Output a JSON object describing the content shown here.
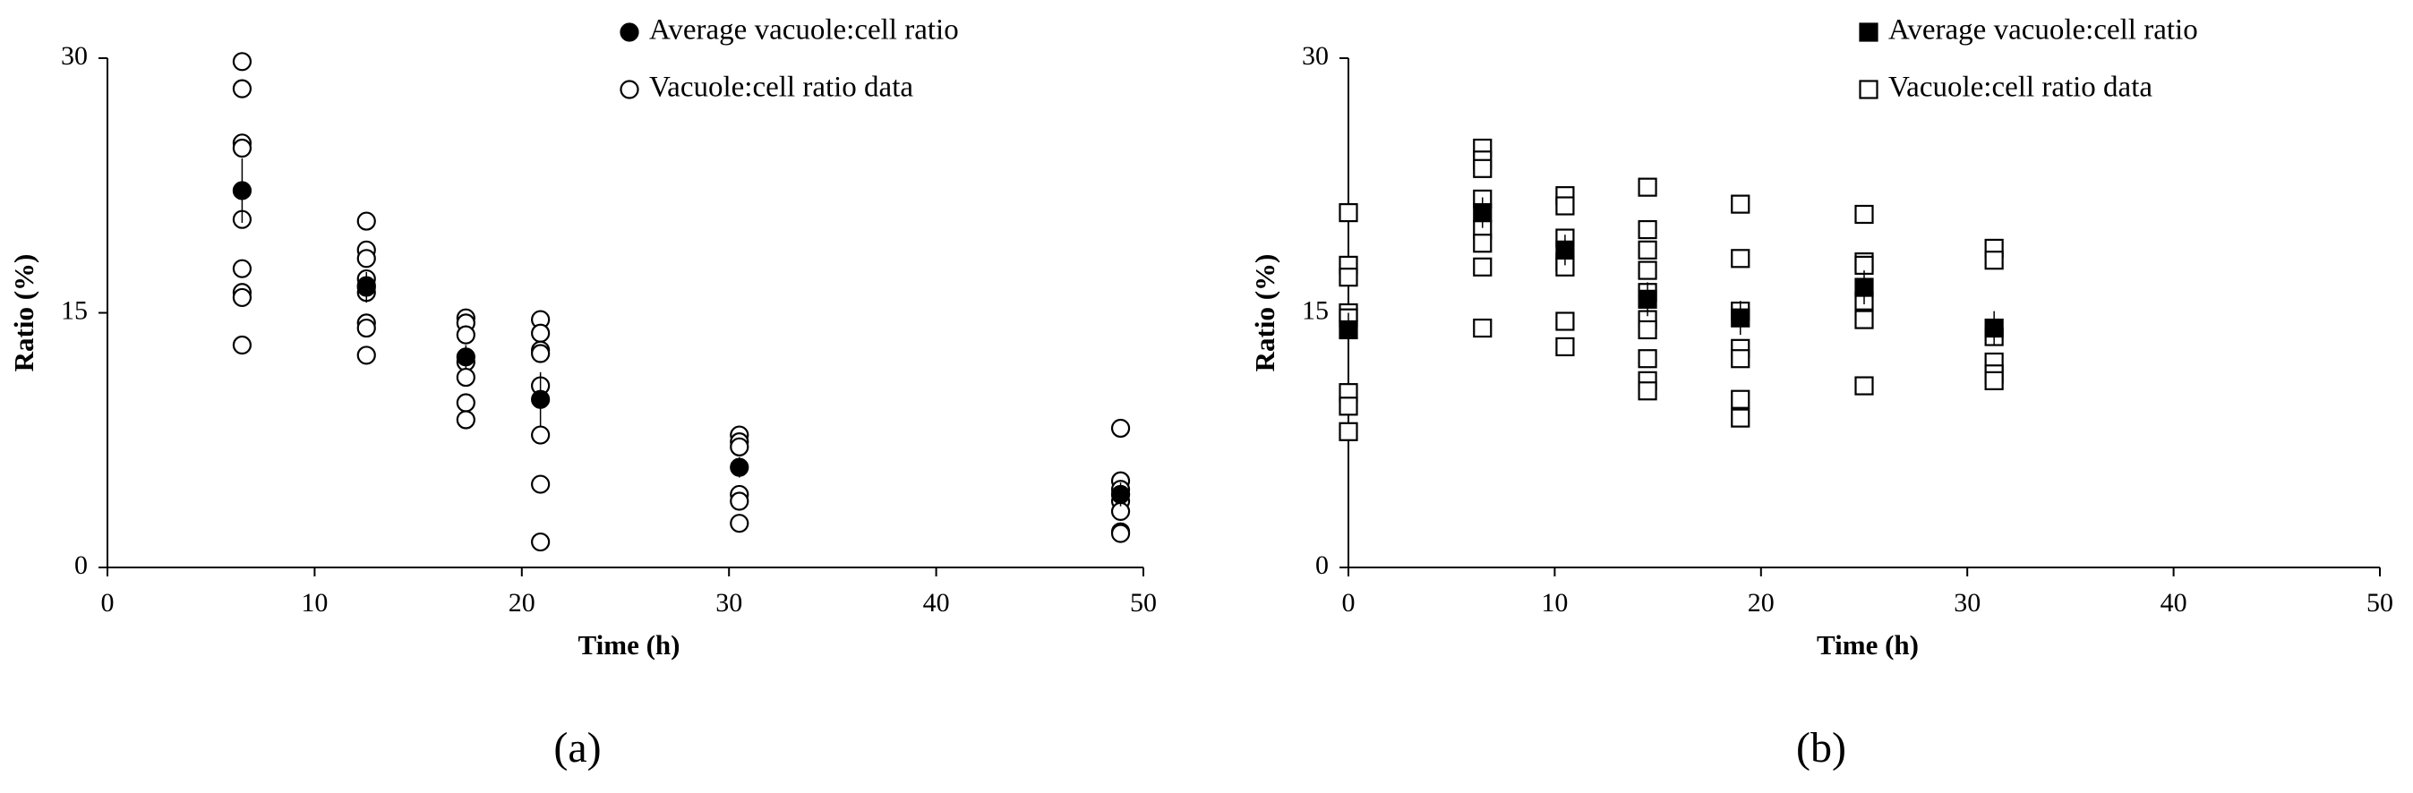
{
  "chart_data": [
    {
      "type": "scatter",
      "panel_label": "(a)",
      "xlabel": "Time (h)",
      "ylabel": "Ratio (%)",
      "xlim": [
        0,
        50
      ],
      "ylim": [
        0,
        30
      ],
      "xticks": [
        0,
        10,
        20,
        30,
        40,
        50
      ],
      "yticks": [
        0,
        15,
        30
      ],
      "series": [
        {
          "name": "Average vacuole:cell ratio",
          "marker": "circle",
          "filled": true,
          "color": "#000000",
          "x": [
            6.5,
            12.5,
            17.3,
            20.9,
            30.5,
            48.9
          ],
          "values": [
            22.2,
            16.5,
            12.4,
            9.9,
            5.9,
            4.3
          ],
          "errors": [
            1.9,
            0.9,
            0.7,
            1.6,
            0.6,
            0.7
          ]
        },
        {
          "name": "Vacuole:cell ratio data",
          "marker": "circle",
          "filled": false,
          "color": "#000000",
          "x": [
            6.5,
            6.5,
            6.5,
            6.5,
            6.5,
            6.5,
            6.5,
            6.5,
            6.5,
            12.5,
            12.5,
            12.5,
            12.5,
            12.5,
            12.5,
            12.5,
            12.5,
            12.5,
            17.3,
            17.3,
            17.3,
            17.3,
            17.3,
            17.3,
            17.3,
            20.9,
            20.9,
            20.9,
            20.9,
            20.9,
            20.9,
            20.9,
            20.9,
            30.5,
            30.5,
            30.5,
            30.5,
            30.5,
            30.5,
            48.9,
            48.9,
            48.9,
            48.9,
            48.9,
            48.9,
            48.9,
            48.9
          ],
          "values": [
            29.8,
            28.2,
            25.0,
            24.7,
            20.5,
            17.6,
            16.2,
            15.9,
            13.1,
            20.4,
            18.7,
            18.2,
            17.0,
            16.6,
            16.2,
            14.4,
            14.1,
            12.5,
            14.7,
            14.4,
            13.7,
            12.1,
            11.2,
            9.7,
            8.7,
            14.6,
            13.8,
            12.8,
            12.6,
            10.7,
            7.8,
            4.9,
            1.5,
            7.8,
            7.4,
            7.1,
            4.3,
            3.9,
            2.6,
            8.2,
            5.1,
            4.6,
            4.3,
            3.9,
            3.3,
            2.1,
            2.0
          ]
        }
      ]
    },
    {
      "type": "scatter",
      "panel_label": "(b)",
      "xlabel": "Time (h)",
      "ylabel": "Ratio (%)",
      "xlim": [
        0,
        50
      ],
      "ylim": [
        0,
        30
      ],
      "xticks": [
        0,
        10,
        20,
        30,
        40,
        50
      ],
      "yticks": [
        0,
        15,
        30
      ],
      "series": [
        {
          "name": "Average vacuole:cell ratio",
          "marker": "square",
          "filled": true,
          "color": "#000000",
          "x": [
            0,
            6.5,
            10.5,
            14.5,
            19.0,
            25.0,
            31.3
          ],
          "values": [
            14.0,
            20.9,
            18.7,
            15.8,
            14.7,
            16.5,
            14.1
          ],
          "errors": [
            1.0,
            0.9,
            0.9,
            1.0,
            1.0,
            1.0,
            1.0
          ]
        },
        {
          "name": "Vacuole:cell ratio data",
          "marker": "square",
          "filled": false,
          "color": "#000000",
          "x": [
            0,
            0,
            0,
            0,
            0,
            0,
            0,
            0,
            6.5,
            6.5,
            6.5,
            6.5,
            6.5,
            6.5,
            6.5,
            6.5,
            10.5,
            10.5,
            10.5,
            10.5,
            10.5,
            10.5,
            10.5,
            14.5,
            14.5,
            14.5,
            14.5,
            14.5,
            14.5,
            14.5,
            14.5,
            14.5,
            14.5,
            19.0,
            19.0,
            19.0,
            19.0,
            19.0,
            19.0,
            19.0,
            25.0,
            25.0,
            25.0,
            25.0,
            25.0,
            25.0,
            31.3,
            31.3,
            31.3,
            31.3,
            31.3,
            31.3
          ],
          "values": [
            20.9,
            17.8,
            17.1,
            15.0,
            14.7,
            10.3,
            9.5,
            8.0,
            24.7,
            24.0,
            23.5,
            21.7,
            19.9,
            19.1,
            17.7,
            14.1,
            21.9,
            21.3,
            19.4,
            18.0,
            17.7,
            14.5,
            13.0,
            22.4,
            19.9,
            18.7,
            17.5,
            16.2,
            14.6,
            14.0,
            12.3,
            11.0,
            10.4,
            21.4,
            18.2,
            15.1,
            12.9,
            12.3,
            9.9,
            8.8,
            20.8,
            18.0,
            17.8,
            15.7,
            14.6,
            10.7,
            18.8,
            18.1,
            13.6,
            12.1,
            11.4,
            11.0
          ]
        }
      ]
    }
  ]
}
